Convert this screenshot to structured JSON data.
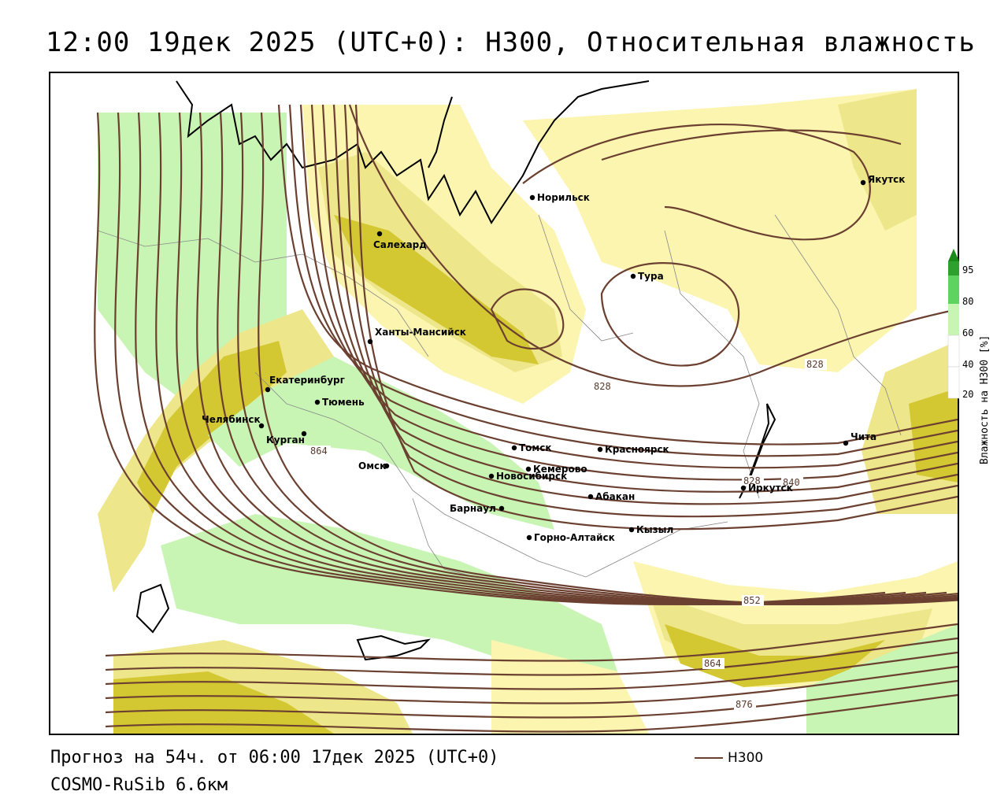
{
  "title": "12:00 19дек 2025 (UTC+0): H300, Относительная влажность",
  "forecast_text": "Прогноз на 54ч. от 06:00 17дек 2025 (UTC+0)",
  "model_text": "COSMO-RuSib 6.6км",
  "line_legend": {
    "label": "H300",
    "color": "#6b4030"
  },
  "colorbar": {
    "title": "Влажность на H300 [%]",
    "ticks": [
      "95",
      "80",
      "60",
      "40",
      "20"
    ],
    "colors": {
      "95": "#2ea02e",
      "80": "#5fd35f",
      "60": "#c8f5b4",
      "40": "#ffffff",
      "20": "#ffffff",
      "yellow_light": "#fbf5b0",
      "yellow_mid": "#eee68a",
      "yellow_dark": "#d4c832"
    }
  },
  "cities": [
    {
      "name": "Норильск"
    },
    {
      "name": "Якутск"
    },
    {
      "name": "Салехард"
    },
    {
      "name": "Тура"
    },
    {
      "name": "Ханты-Мансийск"
    },
    {
      "name": "Екатеринбург"
    },
    {
      "name": "Тюмень"
    },
    {
      "name": "Челябинск"
    },
    {
      "name": "Курган"
    },
    {
      "name": "Омск"
    },
    {
      "name": "Новосибирск"
    },
    {
      "name": "Томск"
    },
    {
      "name": "Кемерово"
    },
    {
      "name": "Красноярск"
    },
    {
      "name": "Барнаул"
    },
    {
      "name": "Абакан"
    },
    {
      "name": "Горно-Алтайск"
    },
    {
      "name": "Кызыл"
    },
    {
      "name": "Иркутск"
    },
    {
      "name": "Чита"
    }
  ],
  "isohypse_labels": [
    "828",
    "828",
    "828",
    "840",
    "852",
    "864",
    "876",
    "864"
  ]
}
